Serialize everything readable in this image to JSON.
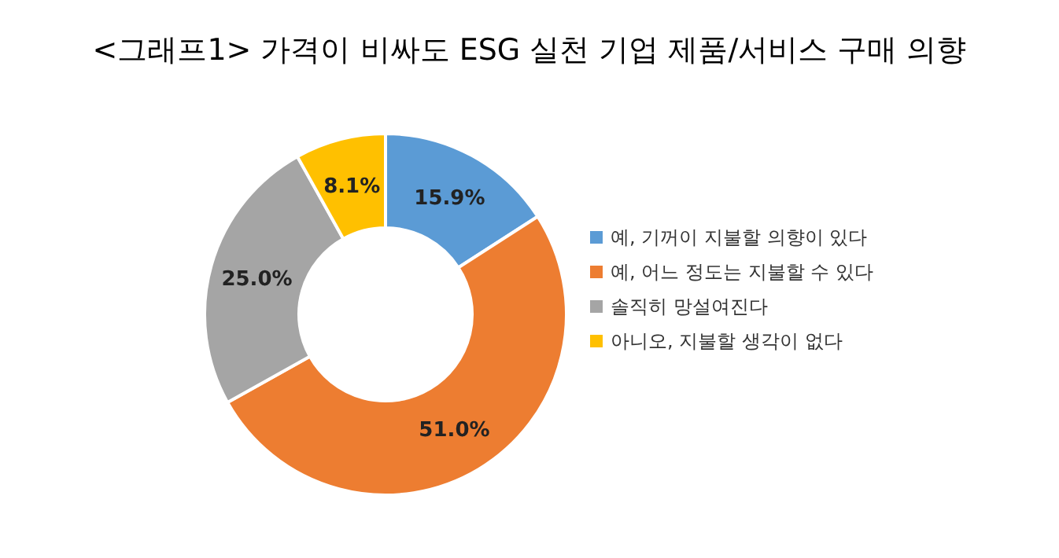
{
  "chart_data": {
    "type": "donut",
    "title": "<그래프1> 가격이 비싸도 ESG 실천 기업 제품/서비스 구매 의향",
    "categories": [
      "예, 기꺼이 지불할 의향이 있다",
      "예, 어느 정도는 지불할 수 있다",
      "솔직히 망설여진다",
      "아니오, 지불할 생각이 없다"
    ],
    "values": [
      15.9,
      51.0,
      25.0,
      8.1
    ],
    "colors": [
      "#5b9bd5",
      "#ed7d31",
      "#a5a5a5",
      "#ffc000"
    ],
    "value_labels": [
      "15.9%",
      "51.0%",
      "25.0%",
      "8.1%"
    ],
    "legend": "right"
  }
}
